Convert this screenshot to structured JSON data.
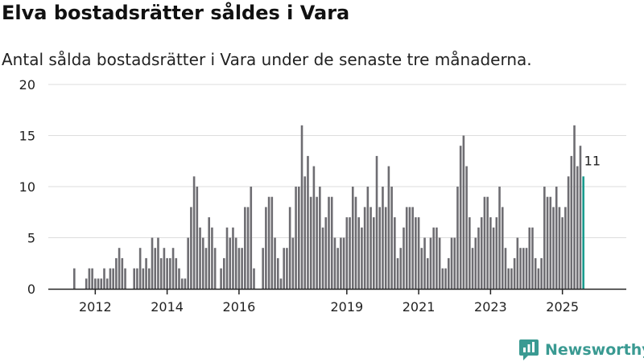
{
  "title": "Elva bostadsrätter såldes i Vara",
  "subtitle": "Antal sålda bostadsrätter i Vara under de senaste tre månaderna.",
  "brand": {
    "name": "Newsworthy",
    "icon": "newsworthy-logo-icon",
    "color": "#3a9a92"
  },
  "colors": {
    "bar": "#6e6d72",
    "highlight": "#1a9b8e",
    "grid": "#dddddd",
    "axis": "#222222"
  },
  "chart_data": {
    "type": "bar",
    "title": "Elva bostadsrätter såldes i Vara",
    "xlabel": "",
    "ylabel": "",
    "ylim": [
      0,
      20
    ],
    "yticks": [
      0,
      5,
      10,
      15,
      20
    ],
    "start": "2011-06",
    "x_ticks": [
      {
        "label": "2012",
        "month": "2012-01"
      },
      {
        "label": "2014",
        "month": "2014-01"
      },
      {
        "label": "2016",
        "month": "2016-01"
      },
      {
        "label": "2019",
        "month": "2019-01"
      },
      {
        "label": "2021",
        "month": "2021-01"
      },
      {
        "label": "2023",
        "month": "2023-01"
      },
      {
        "label": "2025",
        "month": "2025-01"
      }
    ],
    "values": [
      2,
      0,
      0,
      0,
      1,
      2,
      2,
      1,
      1,
      1,
      2,
      1,
      2,
      2,
      3,
      4,
      3,
      2,
      0,
      0,
      2,
      2,
      4,
      2,
      3,
      2,
      5,
      4,
      5,
      3,
      4,
      3,
      3,
      4,
      3,
      2,
      1,
      1,
      5,
      8,
      11,
      10,
      6,
      5,
      4,
      7,
      6,
      4,
      0,
      2,
      3,
      6,
      5,
      6,
      5,
      4,
      4,
      8,
      8,
      10,
      2,
      0,
      0,
      4,
      8,
      9,
      9,
      5,
      3,
      1,
      4,
      4,
      8,
      5,
      10,
      10,
      16,
      11,
      13,
      9,
      12,
      9,
      10,
      6,
      7,
      9,
      9,
      5,
      4,
      5,
      5,
      7,
      7,
      10,
      9,
      7,
      6,
      8,
      10,
      8,
      7,
      13,
      8,
      10,
      8,
      12,
      10,
      7,
      3,
      4,
      6,
      8,
      8,
      8,
      7,
      7,
      4,
      5,
      3,
      5,
      6,
      6,
      5,
      2,
      2,
      3,
      5,
      5,
      10,
      14,
      15,
      12,
      7,
      4,
      5,
      6,
      7,
      9,
      9,
      7,
      6,
      7,
      10,
      8,
      4,
      2,
      2,
      3,
      5,
      4,
      4,
      4,
      6,
      6,
      3,
      2,
      3,
      10,
      9,
      9,
      8,
      10,
      8,
      7,
      8,
      11,
      13,
      16,
      12,
      14,
      11
    ],
    "annotation": {
      "label": "11",
      "index": 173,
      "value": 11
    }
  }
}
